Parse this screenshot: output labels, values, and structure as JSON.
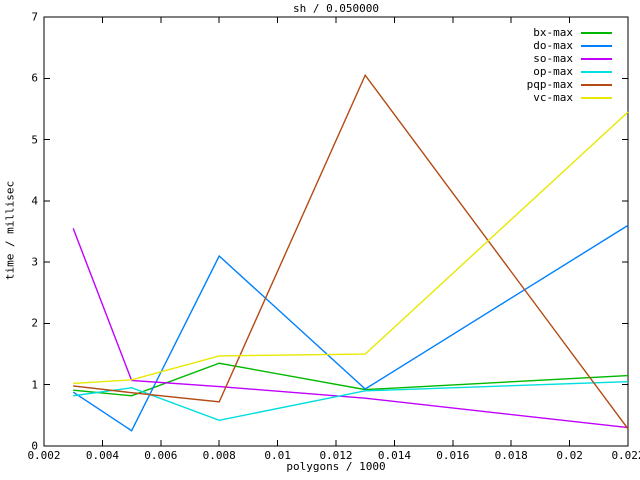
{
  "window": {
    "background": "#ffffff"
  },
  "chart_data": {
    "type": "line",
    "title": "sh / 0.050000",
    "xlabel": "polygons / 1000",
    "ylabel": "time / millisec",
    "xlim": [
      0.002,
      0.022
    ],
    "ylim": [
      0,
      7
    ],
    "grid": false,
    "legend_position": "top-right-inside",
    "x_ticks": [
      0.002,
      0.004,
      0.006,
      0.008,
      0.01,
      0.012,
      0.014,
      0.016,
      0.018,
      0.02,
      0.022
    ],
    "x_tick_labels": [
      "0.002",
      "0.004",
      "0.006",
      "0.008",
      "0.01",
      "0.012",
      "0.014",
      "0.016",
      "0.018",
      "0.02",
      "0.022"
    ],
    "y_ticks": [
      0,
      1,
      2,
      3,
      4,
      5,
      6,
      7
    ],
    "y_tick_labels": [
      "0",
      "1",
      "2",
      "3",
      "4",
      "5",
      "6",
      "7"
    ],
    "x": [
      0.003,
      0.005,
      0.008,
      0.013,
      0.022
    ],
    "series": [
      {
        "name": "bx-max",
        "color": "#00b800",
        "values": [
          0.91,
          0.82,
          1.35,
          0.92,
          1.15
        ]
      },
      {
        "name": "do-max",
        "color": "#0080ff",
        "values": [
          0.88,
          0.25,
          3.1,
          0.93,
          3.6
        ]
      },
      {
        "name": "so-max",
        "color": "#c000ff",
        "values": [
          3.55,
          1.07,
          0.97,
          0.78,
          0.3
        ]
      },
      {
        "name": "op-max",
        "color": "#00dede",
        "values": [
          0.82,
          0.95,
          0.42,
          0.9,
          1.05
        ]
      },
      {
        "name": "pqp-max",
        "color": "#b44a14",
        "values": [
          0.98,
          0.87,
          0.72,
          6.05,
          0.28
        ]
      },
      {
        "name": "vc-max",
        "color": "#e8e800",
        "values": [
          1.02,
          1.08,
          1.47,
          1.5,
          5.45
        ]
      }
    ],
    "axis_color": "#000000",
    "text_color": "#000000"
  }
}
